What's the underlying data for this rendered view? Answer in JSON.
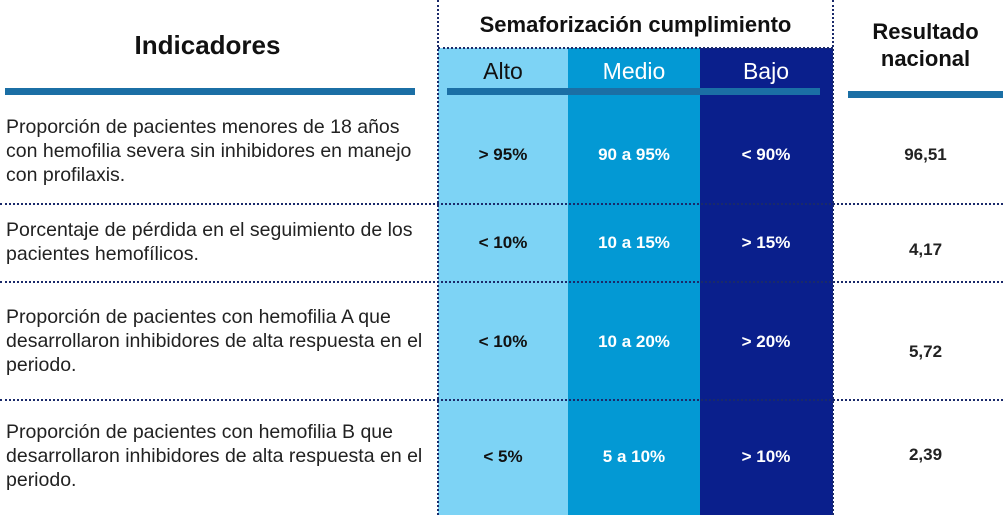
{
  "headers": {
    "indicadores": "Indicadores",
    "semaforizacion": "Semaforización cumplimiento",
    "alto": "Alto",
    "medio": "Medio",
    "bajo": "Bajo",
    "resultado_line1": "Resultado",
    "resultado_line2": "nacional"
  },
  "colors": {
    "alto": "#7dd3f5",
    "medio": "#0399d4",
    "bajo": "#0a1f8c",
    "accent": "#1b6fa5"
  },
  "rows": [
    {
      "indicador": "Proporción de pacientes menores de 18 años con hemofilia severa sin inhibidores en manejo con profilaxis.",
      "alto": "> 95%",
      "medio": "90 a 95%",
      "bajo": "< 90%",
      "resultado": "96,51"
    },
    {
      "indicador": "Porcentaje de pérdida en el seguimiento de los pacientes hemofílicos.",
      "alto": "< 10%",
      "medio": "10 a 15%",
      "bajo": "> 15%",
      "resultado": "4,17"
    },
    {
      "indicador": "Proporción de pacientes con hemofilia A que desarrollaron inhibidores de alta respuesta en el periodo.",
      "alto": "< 10%",
      "medio": "10 a 20%",
      "bajo": "> 20%",
      "resultado": "5,72"
    },
    {
      "indicador": "Proporción de pacientes con hemofilia B que desarrollaron inhibidores de alta respuesta en el periodo.",
      "alto": "< 5%",
      "medio": "5 a 10%",
      "bajo": "> 10%",
      "resultado": "2,39"
    }
  ]
}
